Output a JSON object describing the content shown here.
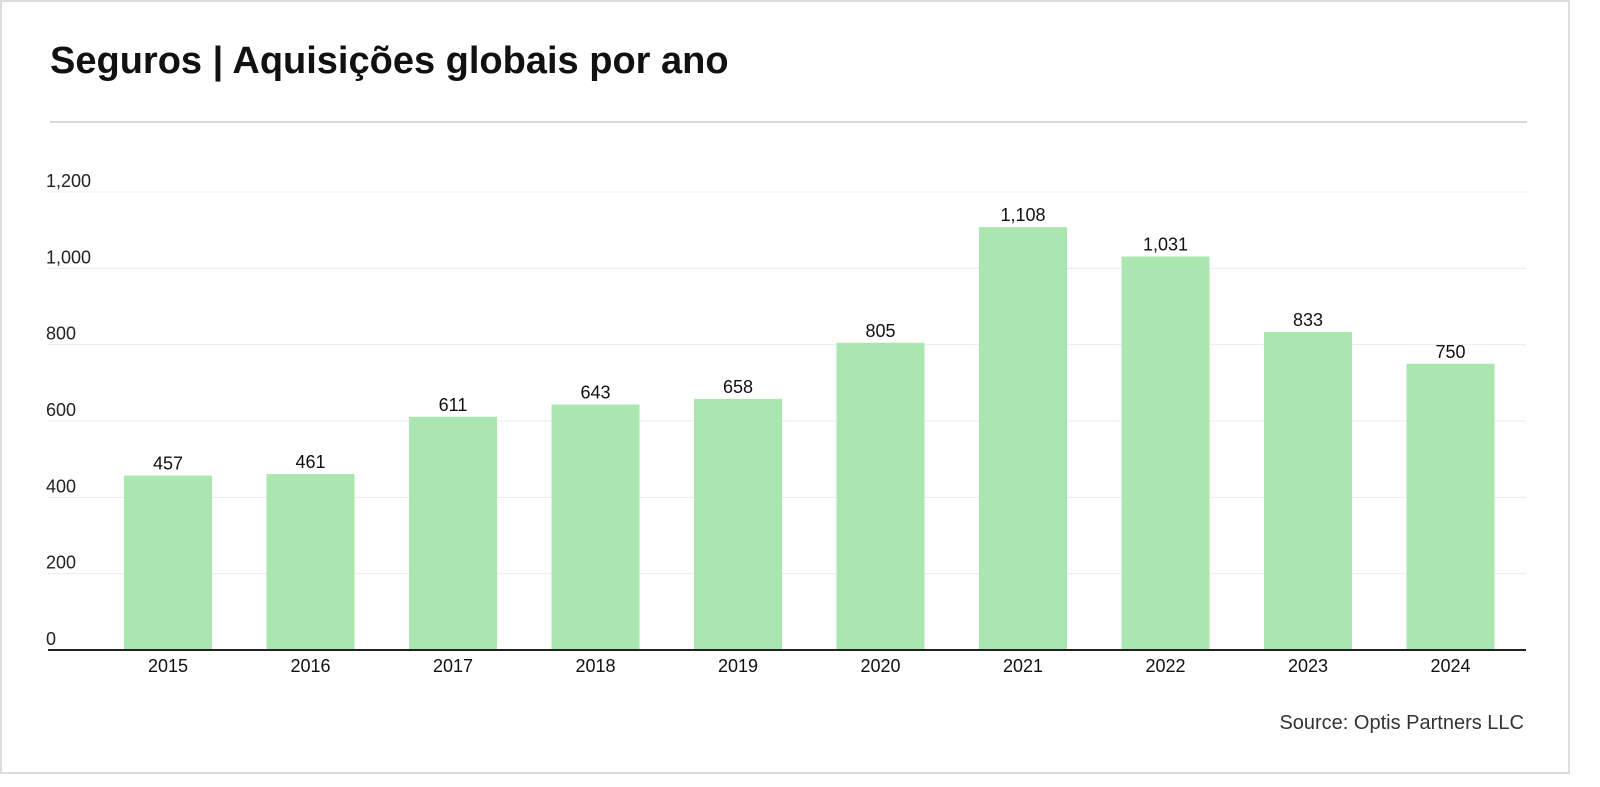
{
  "chart_data": {
    "type": "bar",
    "title": "Seguros | Aquisições globais por ano",
    "source": "Source: Optis Partners LLC",
    "categories": [
      "2015",
      "2016",
      "2017",
      "2018",
      "2019",
      "2020",
      "2021",
      "2022",
      "2023",
      "2024"
    ],
    "values": [
      457,
      461,
      611,
      643,
      658,
      805,
      1108,
      1031,
      833,
      750
    ],
    "value_labels": [
      "457",
      "461",
      "611",
      "643",
      "658",
      "805",
      "1,108",
      "1,031",
      "833",
      "750"
    ],
    "ylim": [
      0,
      1200
    ],
    "yticks": [
      0,
      200,
      400,
      600,
      800,
      1000,
      1200
    ],
    "ytick_labels": [
      "0",
      "200",
      "400",
      "600",
      "800",
      "1,000",
      "1,200"
    ],
    "xlabel": "",
    "ylabel": "",
    "grid": true,
    "legend": "none",
    "bar_color": "#aae6b0",
    "grid_color": "#ececec",
    "axis_color": "#222222"
  }
}
